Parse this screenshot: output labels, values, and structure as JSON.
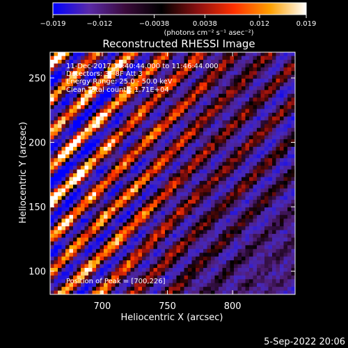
{
  "chart_data": {
    "type": "heatmap",
    "title": "Reconstructed RHESSI Image",
    "xlabel": "Heliocentric X (arcsec)",
    "ylabel": "Heliocentric Y (arcsec)",
    "xlim": [
      660,
      848
    ],
    "ylim": [
      82,
      270
    ],
    "x_ticks": [
      700,
      750,
      800
    ],
    "y_ticks": [
      100,
      150,
      200,
      250
    ],
    "colorbar": {
      "min": -0.019,
      "max": 0.019,
      "ticks": [
        "-0.019",
        "-0.012",
        "-0.0038",
        "0.0038",
        "0.012",
        "0.019"
      ],
      "label": "(photons cm⁻² s⁻¹ asec⁻²)",
      "colors": [
        "#0000ff",
        "#5a2aa8",
        "#3a0a3a",
        "#000000",
        "#8a1010",
        "#ff3000",
        "#ffa000",
        "#ffffff"
      ]
    },
    "annotations": {
      "time": "11-Dec-2017 11:40:44.000 to 11:46:44.000",
      "detectors": "Detectors: 3F 8F  Att 3",
      "energy": "Energy Range: 25.0 - 50.0 keV",
      "clean": "Clean      Total counts: 1.71E+04",
      "peak": "Position of Peak = [700,226]"
    },
    "peak": [
      700,
      226
    ],
    "grid": false
  },
  "footer": {
    "date": "5-Sep-2022 20:06"
  }
}
